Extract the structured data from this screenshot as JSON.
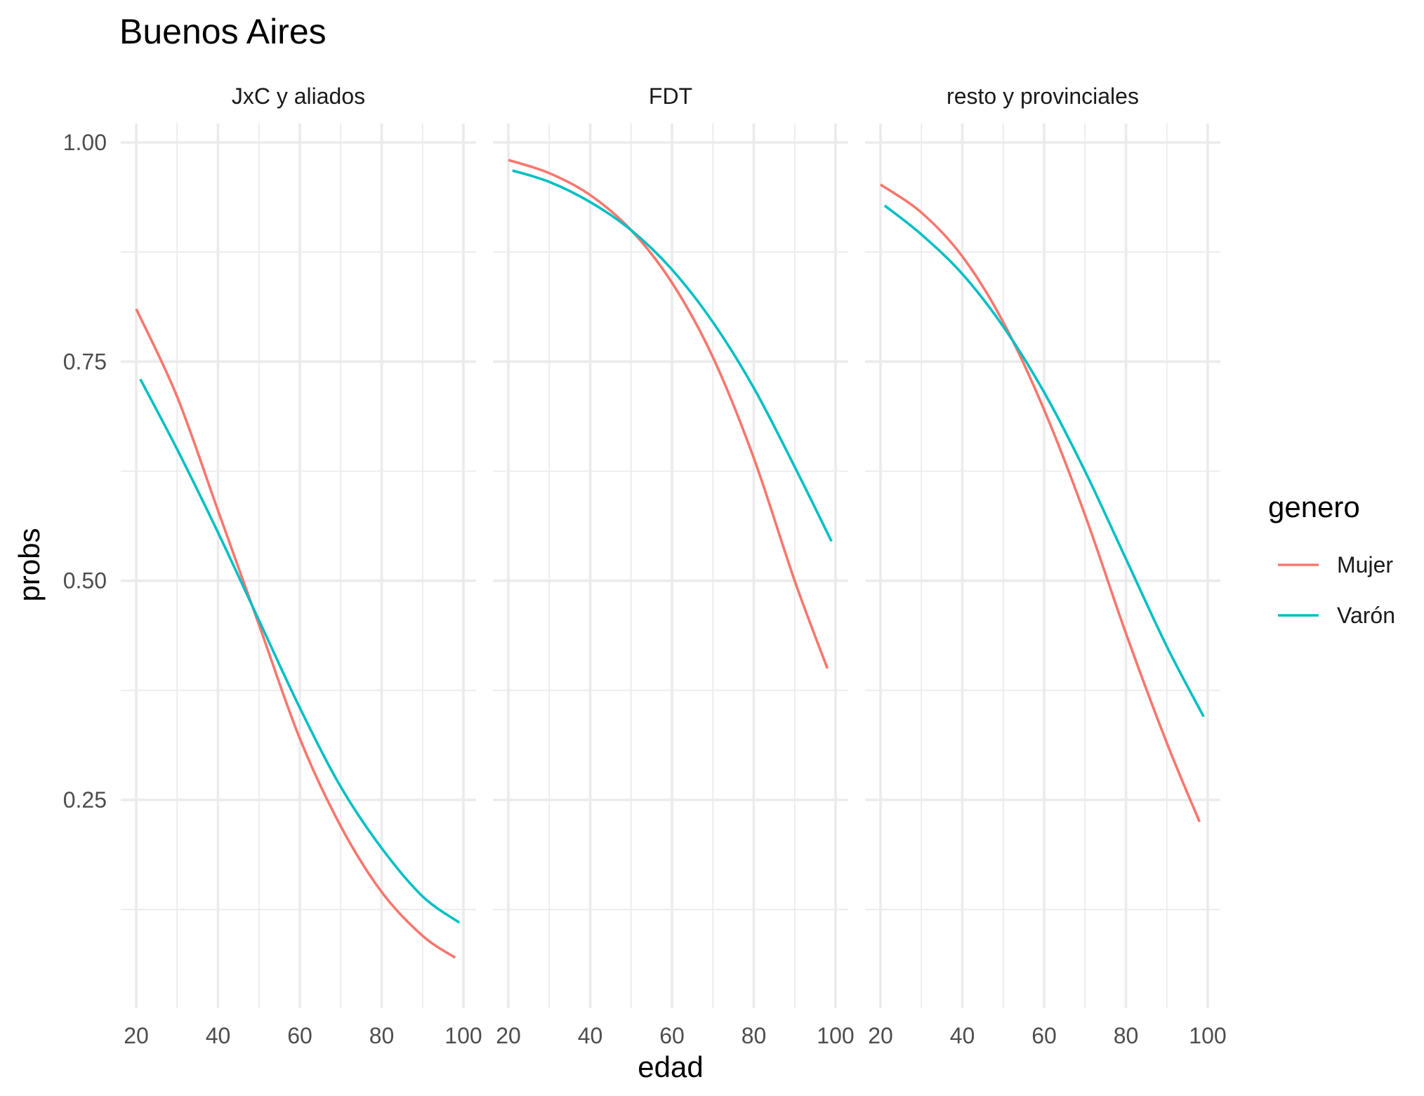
{
  "chart_data": {
    "type": "line",
    "title": "Buenos Aires",
    "xlabel": "edad",
    "ylabel": "probs",
    "xlim": [
      20,
      100
    ],
    "ylim": [
      0.075,
      1.02
    ],
    "x_ticks": [
      "20",
      "40",
      "60",
      "80",
      "100"
    ],
    "y_ticks": [
      "0.25",
      "0.50",
      "0.75",
      "1.00"
    ],
    "grid": true,
    "legend": {
      "title": "genero",
      "placement": "right",
      "entries": [
        {
          "name": "Mujer",
          "color": "#F8766D"
        },
        {
          "name": "Varón",
          "color": "#00BFC4"
        }
      ]
    },
    "panels": [
      {
        "label": "JxC y aliados",
        "series": [
          {
            "name": "Mujer",
            "color": "#F8766D",
            "x": [
              20,
              30,
              40,
              50,
              60,
              70,
              80,
              90,
              98
            ],
            "y": [
              0.81,
              0.71,
              0.58,
              0.45,
              0.32,
              0.22,
              0.145,
              0.095,
              0.07
            ]
          },
          {
            "name": "Varón",
            "color": "#00BFC4",
            "x": [
              21,
              30,
              40,
              50,
              60,
              70,
              80,
              90,
              99
            ],
            "y": [
              0.73,
              0.65,
              0.555,
              0.455,
              0.355,
              0.265,
              0.195,
              0.14,
              0.11
            ]
          }
        ]
      },
      {
        "label": "FDT",
        "series": [
          {
            "name": "Mujer",
            "color": "#F8766D",
            "x": [
              20,
              30,
              40,
              50,
              60,
              70,
              80,
              90,
              98
            ],
            "y": [
              0.98,
              0.965,
              0.94,
              0.9,
              0.84,
              0.755,
              0.64,
              0.5,
              0.4
            ]
          },
          {
            "name": "Varón",
            "color": "#00BFC4",
            "x": [
              21,
              30,
              40,
              50,
              60,
              70,
              80,
              90,
              99
            ],
            "y": [
              0.968,
              0.955,
              0.932,
              0.9,
              0.855,
              0.795,
              0.72,
              0.63,
              0.545
            ]
          }
        ]
      },
      {
        "label": "resto y provinciales",
        "series": [
          {
            "name": "Mujer",
            "color": "#F8766D",
            "x": [
              20,
              30,
              40,
              50,
              60,
              70,
              80,
              90,
              98
            ],
            "y": [
              0.952,
              0.92,
              0.87,
              0.795,
              0.695,
              0.575,
              0.44,
              0.315,
              0.225
            ]
          },
          {
            "name": "Varón",
            "color": "#00BFC4",
            "x": [
              21,
              30,
              40,
              50,
              60,
              70,
              80,
              90,
              99
            ],
            "y": [
              0.928,
              0.895,
              0.85,
              0.79,
              0.715,
              0.625,
              0.525,
              0.425,
              0.345
            ]
          }
        ]
      }
    ]
  }
}
